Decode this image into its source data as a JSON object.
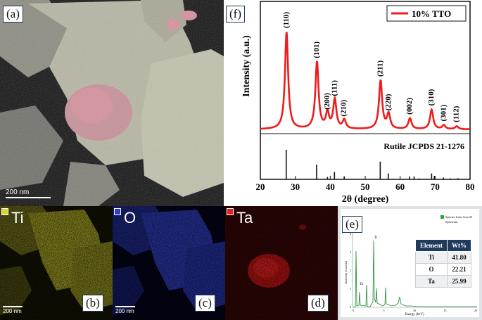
{
  "panel_a": {
    "label": "(a)",
    "scalebar": "200 nm"
  },
  "panel_b": {
    "label": "(b)",
    "element": "Ti",
    "scalebar": "200 nm",
    "color": "#d6d630"
  },
  "panel_c": {
    "label": "(c)",
    "element": "O",
    "scalebar": "200 nm",
    "color": "#2b3bd9"
  },
  "panel_d": {
    "label": "(d)",
    "element": "Ta",
    "scalebar": "",
    "color": "#e52020"
  },
  "panel_e": {
    "label": "(e)",
    "legend": [
      "Spectra from Area #1",
      "Spectrum"
    ],
    "xlabel": "Energy (keV)",
    "ylabel": "Intensity (Counts)",
    "xticks": [
      "0",
      "5",
      "10",
      "15",
      "20"
    ],
    "yticks": [
      "0",
      "1",
      "2",
      "3",
      "4"
    ],
    "peak_labels": [
      "Ti",
      "Ta"
    ],
    "table": {
      "headers": [
        "Element",
        "Wt%"
      ],
      "rows": [
        [
          "Ti",
          "41.80"
        ],
        [
          "O",
          "22.21"
        ],
        [
          "Ta",
          "25.99"
        ]
      ]
    }
  },
  "panel_f": {
    "label": "(f)",
    "legend": "10% TTO",
    "reference": "Rutile JCPDS 21-1276",
    "color": "#ee1c1c"
  },
  "chart_data": {
    "type": "line",
    "xlabel": "2θ (degree)",
    "ylabel": "Intensity (a.u.)",
    "xlim": [
      20,
      80
    ],
    "xticks": [
      20,
      30,
      40,
      50,
      60,
      70,
      80
    ],
    "series": [
      {
        "name": "10% TTO"
      }
    ],
    "peaks": [
      {
        "hkl": "(110)",
        "x": 27.5,
        "y": 100
      },
      {
        "hkl": "(101)",
        "x": 36.2,
        "y": 69
      },
      {
        "hkl": "(200)",
        "x": 39.2,
        "y": 16
      },
      {
        "hkl": "(111)",
        "x": 41.3,
        "y": 30
      },
      {
        "hkl": "(210)",
        "x": 44.0,
        "y": 9
      },
      {
        "hkl": "(211)",
        "x": 54.4,
        "y": 50
      },
      {
        "hkl": "(220)",
        "x": 56.7,
        "y": 15
      },
      {
        "hkl": "(002)",
        "x": 62.8,
        "y": 11
      },
      {
        "hkl": "(310)",
        "x": 69.0,
        "y": 20
      },
      {
        "hkl": "(301)",
        "x": 72.5,
        "y": 4
      },
      {
        "hkl": "(112)",
        "x": 76.2,
        "y": 3
      }
    ],
    "reference_lines": [
      {
        "x": 27.4,
        "h": 100
      },
      {
        "x": 36.1,
        "h": 50
      },
      {
        "x": 39.2,
        "h": 8
      },
      {
        "x": 41.2,
        "h": 25
      },
      {
        "x": 44.0,
        "h": 10
      },
      {
        "x": 54.3,
        "h": 60
      },
      {
        "x": 56.6,
        "h": 20
      },
      {
        "x": 62.7,
        "h": 10
      },
      {
        "x": 64.0,
        "h": 10
      },
      {
        "x": 65.5,
        "h": 3
      },
      {
        "x": 69.0,
        "h": 20
      },
      {
        "x": 69.8,
        "h": 12
      },
      {
        "x": 72.4,
        "h": 6
      },
      {
        "x": 74.4,
        "h": 3
      },
      {
        "x": 76.5,
        "h": 4
      }
    ]
  }
}
